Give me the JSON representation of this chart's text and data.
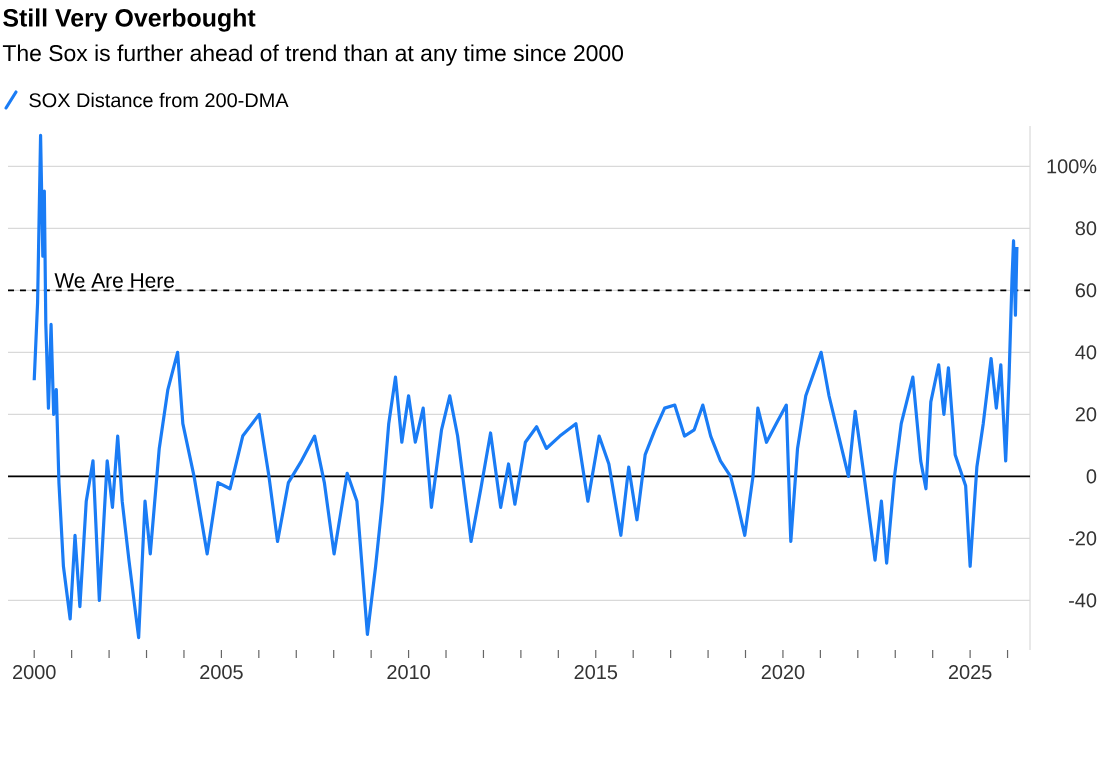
{
  "chart_data": {
    "type": "line",
    "title": "Still Very Overbought",
    "subtitle": "The Sox is further ahead of trend than at any time since 2000",
    "x": [
      2000.0,
      2000.09,
      2000.17,
      2000.23,
      2000.27,
      2000.31,
      2000.38,
      2000.45,
      2000.52,
      2000.59,
      2000.66,
      2000.78,
      2000.96,
      2001.09,
      2001.22,
      2001.39,
      2001.57,
      2001.74,
      2001.95,
      2002.09,
      2002.23,
      2002.35,
      2002.53,
      2002.79,
      2002.96,
      2003.1,
      2003.34,
      2003.57,
      2003.83,
      2003.97,
      2004.27,
      2004.62,
      2004.91,
      2005.23,
      2005.57,
      2006.01,
      2006.27,
      2006.5,
      2006.79,
      2007.14,
      2007.49,
      2007.75,
      2008.01,
      2008.36,
      2008.62,
      2008.9,
      2009.12,
      2009.3,
      2009.47,
      2009.65,
      2009.82,
      2010.0,
      2010.18,
      2010.39,
      2010.61,
      2010.88,
      2011.1,
      2011.31,
      2011.67,
      2011.93,
      2012.19,
      2012.46,
      2012.67,
      2012.84,
      2013.12,
      2013.42,
      2013.68,
      2014.04,
      2014.47,
      2014.79,
      2015.09,
      2015.35,
      2015.67,
      2015.88,
      2016.1,
      2016.32,
      2016.58,
      2016.84,
      2017.11,
      2017.37,
      2017.63,
      2017.86,
      2018.07,
      2018.33,
      2018.6,
      2018.77,
      2018.98,
      2019.2,
      2019.33,
      2019.56,
      2019.82,
      2020.09,
      2020.21,
      2020.39,
      2020.61,
      2021.02,
      2021.23,
      2021.49,
      2021.75,
      2021.93,
      2022.19,
      2022.46,
      2022.63,
      2022.77,
      2022.98,
      2023.16,
      2023.47,
      2023.68,
      2023.82,
      2023.95,
      2024.16,
      2024.3,
      2024.42,
      2024.6,
      2024.88,
      2025.0,
      2025.18,
      2025.35,
      2025.56,
      2025.7,
      2025.82,
      2025.95,
      2026.04,
      2026.12,
      2026.16,
      2026.21,
      2026.25
    ],
    "series": [
      {
        "name": "SOX Distance from 200-DMA",
        "color": "#1a7cf5",
        "values": [
          31,
          56,
          110,
          71,
          92,
          49,
          22,
          49,
          20,
          28,
          -2,
          -29,
          -46,
          -19,
          -42,
          -8,
          5,
          -40,
          5,
          -10,
          13,
          -8,
          -27,
          -52,
          -8,
          -25,
          9,
          28,
          40,
          17,
          0,
          -25,
          -2,
          -4,
          13,
          20,
          0,
          -21,
          -2,
          5,
          13,
          -2,
          -25,
          1,
          -8,
          -51,
          -29,
          -8,
          17,
          32,
          11,
          26,
          11,
          22,
          -10,
          15,
          26,
          13,
          -21,
          -4,
          14,
          -10,
          4,
          -9,
          11,
          16,
          9,
          13,
          17,
          -8,
          13,
          4,
          -19,
          3,
          -14,
          7,
          15,
          22,
          23,
          13,
          15,
          23,
          13,
          5,
          0,
          -8,
          -19,
          0,
          22,
          11,
          17,
          23,
          -21,
          9,
          26,
          40,
          26,
          13,
          0,
          21,
          -2,
          -27,
          -8,
          -28,
          0,
          17,
          32,
          5,
          -4,
          24,
          36,
          20,
          35,
          7,
          -3,
          -29,
          3,
          17,
          38,
          22,
          36,
          5,
          32,
          64,
          76,
          52,
          74
        ]
      }
    ],
    "xlim": [
      1999.3,
      2026.6
    ],
    "ylim": [
      -56,
      113
    ],
    "xticks": [
      2000,
      {
        "value": 2001,
        "label": null
      },
      {
        "value": 2002,
        "label": null
      },
      {
        "value": 2003,
        "label": null
      },
      {
        "value": 2004,
        "label": null
      },
      2005,
      {
        "value": 2006,
        "label": null
      },
      {
        "value": 2007,
        "label": null
      },
      {
        "value": 2008,
        "label": null
      },
      {
        "value": 2009,
        "label": null
      },
      2010,
      {
        "value": 2011,
        "label": null
      },
      {
        "value": 2012,
        "label": null
      },
      {
        "value": 2013,
        "label": null
      },
      {
        "value": 2014,
        "label": null
      },
      2015,
      {
        "value": 2016,
        "label": null
      },
      {
        "value": 2017,
        "label": null
      },
      {
        "value": 2018,
        "label": null
      },
      {
        "value": 2019,
        "label": null
      },
      2020,
      {
        "value": 2021,
        "label": null
      },
      {
        "value": 2022,
        "label": null
      },
      {
        "value": 2023,
        "label": null
      },
      {
        "value": 2024,
        "label": null
      },
      2025,
      {
        "value": 2026,
        "label": null
      }
    ],
    "yticks": [
      -40,
      -20,
      0,
      20,
      40,
      60,
      80,
      {
        "value": 100,
        "label": "100%"
      }
    ],
    "ref_lines": [
      {
        "axis": "y",
        "value": 60,
        "label": "We Are Here",
        "line_style": "dashed",
        "color": "#000000"
      },
      {
        "axis": "y",
        "value": 0,
        "color": "#000000"
      }
    ],
    "grid": "y",
    "legend": "top left",
    "marker": "none",
    "line_style": "solid"
  }
}
